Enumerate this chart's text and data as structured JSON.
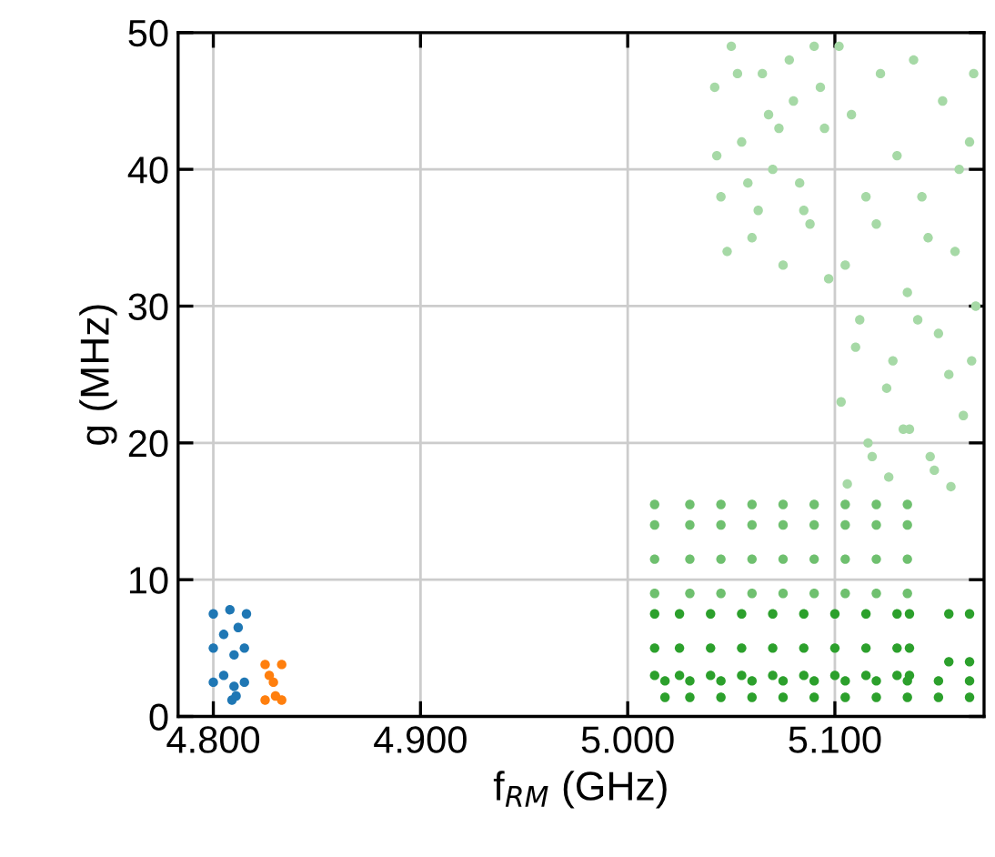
{
  "chart_data": {
    "type": "scatter",
    "xlabel": "f$_{RM}$ (GHz)",
    "ylabel": "g (MHz)",
    "xlim": [
      4.783,
      5.172
    ],
    "ylim": [
      0,
      50
    ],
    "xticks": [
      {
        "value": 4.8,
        "label": "4.800"
      },
      {
        "value": 4.9,
        "label": "4.900"
      },
      {
        "value": 5.0,
        "label": "5.000"
      },
      {
        "value": 5.1,
        "label": "5.100"
      }
    ],
    "yticks": [
      0,
      10,
      20,
      30,
      40,
      50
    ],
    "grid": true,
    "marker": "circle",
    "series": [
      {
        "color": "#1f77b4",
        "x": [
          4.8,
          4.8,
          4.8,
          4.805,
          4.805,
          4.808,
          4.81,
          4.81,
          4.812,
          4.815,
          4.815,
          4.816,
          4.809,
          4.811
        ],
        "values": [
          2.5,
          5,
          7.5,
          3,
          6,
          7.8,
          2.2,
          4.5,
          6.5,
          2.5,
          5,
          7.5,
          1.2,
          1.5
        ]
      },
      {
        "color": "#ff7f0e",
        "x": [
          4.825,
          4.825,
          4.829,
          4.833,
          4.833,
          4.83,
          4.827
        ],
        "values": [
          1.2,
          3.8,
          2.5,
          1.2,
          3.8,
          1.5,
          3
        ]
      },
      {
        "color": "#a6d9a6",
        "x": [
          5.042,
          5.045,
          5.05,
          5.055,
          5.06,
          5.065,
          5.07,
          5.075,
          5.08,
          5.085,
          5.09,
          5.095,
          5.048,
          5.058,
          5.068,
          5.078,
          5.088,
          5.097,
          5.043,
          5.053,
          5.063,
          5.073,
          5.083,
          5.093,
          5.102,
          5.108,
          5.115,
          5.122,
          5.13,
          5.138,
          5.145,
          5.152,
          5.16,
          5.167,
          5.105,
          5.112,
          5.12,
          5.128,
          5.135,
          5.142,
          5.15,
          5.158,
          5.165,
          5.103,
          5.11,
          5.118,
          5.125,
          5.133,
          5.14,
          5.148,
          5.155,
          5.162,
          5.168,
          5.106,
          5.116,
          5.126,
          5.136,
          5.146,
          5.156,
          5.166
        ],
        "values": [
          46,
          38,
          49,
          42,
          35,
          47,
          40,
          33,
          45,
          37,
          49,
          43,
          34,
          39,
          44,
          48,
          36,
          32,
          41,
          47,
          37,
          43,
          39,
          46,
          49,
          44,
          38,
          47,
          41,
          48,
          35,
          45,
          40,
          47,
          33,
          29,
          36,
          26,
          31,
          38,
          28,
          34,
          42,
          23,
          27,
          19,
          24,
          21,
          29,
          18,
          25,
          22,
          30,
          17,
          20,
          17.5,
          21,
          19,
          16.8,
          26
        ]
      },
      {
        "color": "#6fc06f",
        "x": [
          5.013,
          5.013,
          5.013,
          5.013,
          5.03,
          5.03,
          5.03,
          5.03,
          5.045,
          5.045,
          5.045,
          5.045,
          5.06,
          5.06,
          5.06,
          5.06,
          5.075,
          5.075,
          5.075,
          5.075,
          5.09,
          5.09,
          5.09,
          5.09,
          5.105,
          5.105,
          5.105,
          5.105,
          5.12,
          5.12,
          5.12,
          5.12,
          5.135,
          5.135,
          5.135,
          5.135
        ],
        "values": [
          9,
          11.5,
          14,
          15.5,
          9,
          11.5,
          14,
          15.5,
          9,
          11.5,
          14,
          15.5,
          9,
          11.5,
          14,
          15.5,
          9,
          11.5,
          14,
          15.5,
          9,
          11.5,
          14,
          15.5,
          9,
          11.5,
          14,
          15.5,
          9,
          11.5,
          14,
          15.5,
          9,
          11.5,
          14,
          15.5
        ]
      },
      {
        "color": "#2ca02c",
        "x": [
          5.013,
          5.013,
          5.013,
          5.025,
          5.025,
          5.025,
          5.04,
          5.04,
          5.04,
          5.055,
          5.055,
          5.055,
          5.07,
          5.07,
          5.07,
          5.085,
          5.085,
          5.085,
          5.1,
          5.1,
          5.1,
          5.115,
          5.115,
          5.115,
          5.13,
          5.13,
          5.13,
          5.136,
          5.136,
          5.136,
          5.155,
          5.155,
          5.165,
          5.165
        ],
        "values": [
          3,
          5,
          7.5,
          3,
          5,
          7.5,
          3,
          5,
          7.5,
          3,
          5,
          7.5,
          3,
          5,
          7.5,
          3,
          5,
          7.5,
          3,
          5,
          7.5,
          3,
          5,
          7.5,
          3,
          5,
          7.5,
          3,
          5,
          7.5,
          4,
          7.5,
          4,
          7.5
        ]
      },
      {
        "color": "#2ca02c",
        "x": [
          5.018,
          5.018,
          5.03,
          5.03,
          5.045,
          5.045,
          5.06,
          5.06,
          5.075,
          5.075,
          5.09,
          5.09,
          5.105,
          5.105,
          5.12,
          5.12,
          5.135,
          5.135,
          5.15,
          5.15,
          5.165,
          5.165
        ],
        "values": [
          1.4,
          2.6,
          1.4,
          2.6,
          1.4,
          2.6,
          1.4,
          2.6,
          1.4,
          2.6,
          1.4,
          2.6,
          1.4,
          2.6,
          1.4,
          2.6,
          1.4,
          2.6,
          1.4,
          2.6,
          1.4,
          2.6
        ]
      }
    ]
  }
}
